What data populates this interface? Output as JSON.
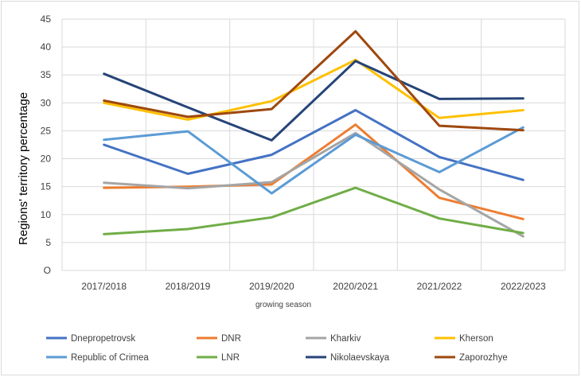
{
  "chart_data": {
    "type": "line",
    "title": "",
    "xlabel": "growing season",
    "ylabel": "Regions' territory percentage",
    "categories": [
      "2017/2018",
      "2018/2019",
      "2019/2020",
      "2020/2021",
      "2021/2022",
      "2022/2023"
    ],
    "ylim": [
      0,
      45
    ],
    "yticks": [
      "O",
      "5",
      "10",
      "15",
      "20",
      "25",
      "30",
      "35",
      "40",
      "45"
    ],
    "grid": "vertical and horizontal",
    "legend_position": "bottom",
    "series": [
      {
        "name": "Dnepropetrovsk",
        "color": "#4472c4",
        "values": [
          22.5,
          17.3,
          20.7,
          28.7,
          20.3,
          16.2
        ]
      },
      {
        "name": "DNR",
        "color": "#ed7d31",
        "values": [
          14.8,
          15.0,
          15.4,
          26.1,
          13.0,
          9.2
        ]
      },
      {
        "name": "Kharkiv",
        "color": "#a5a5a5",
        "values": [
          15.7,
          14.7,
          15.8,
          24.6,
          14.5,
          6.1
        ]
      },
      {
        "name": "Kherson",
        "color": "#ffc000",
        "values": [
          30.0,
          27.0,
          30.3,
          37.7,
          27.3,
          28.7
        ]
      },
      {
        "name": "Republic of Crimea",
        "color": "#5b9bd5",
        "values": [
          23.4,
          24.9,
          13.8,
          24.3,
          17.6,
          25.6
        ]
      },
      {
        "name": "LNR",
        "color": "#70ad47",
        "values": [
          6.5,
          7.4,
          9.5,
          14.8,
          9.3,
          6.7
        ]
      },
      {
        "name": "Nikolaevskaya",
        "color": "#264478",
        "values": [
          35.2,
          29.2,
          23.3,
          37.5,
          30.7,
          30.8
        ]
      },
      {
        "name": "Zaporozhye",
        "color": "#9e480e",
        "values": [
          30.4,
          27.5,
          28.9,
          42.8,
          25.9,
          25.1
        ]
      }
    ]
  }
}
